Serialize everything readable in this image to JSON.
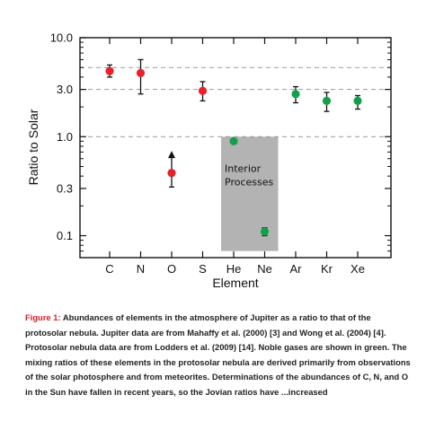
{
  "chart_data": {
    "type": "scatter",
    "title": "",
    "xlabel": "Element",
    "ylabel": "Ratio to Solar",
    "yscale": "log",
    "ylim": [
      0.06,
      10.0
    ],
    "categories": [
      "C",
      "N",
      "O",
      "S",
      "He",
      "Ne",
      "Ar",
      "Kr",
      "Xe"
    ],
    "y_ticks": [
      {
        "value": 10.0,
        "label": "10.0"
      },
      {
        "value": 3.0,
        "label": "3.0"
      },
      {
        "value": 1.0,
        "label": "1.0"
      },
      {
        "value": 0.3,
        "label": "0.3"
      },
      {
        "value": 0.1,
        "label": "0.1"
      }
    ],
    "reference_lines": [
      5.0,
      3.0,
      1.0
    ],
    "shaded_region": {
      "from": "He",
      "to": "Ne",
      "y_from": 0.07,
      "y_to": 1.0,
      "label_lines": [
        "Interior",
        "Processes"
      ]
    },
    "points": [
      {
        "x": "C",
        "y": 4.6,
        "err_low": 4.0,
        "err_high": 5.3,
        "color": "#e8202a"
      },
      {
        "x": "N",
        "y": 4.4,
        "err_low": 2.7,
        "err_high": 6.0,
        "color": "#e8202a"
      },
      {
        "x": "O",
        "y": 0.43,
        "err_low": 0.31,
        "err_high": 0.62,
        "color": "#e8202a",
        "lower_limit_arrow": true
      },
      {
        "x": "S",
        "y": 2.9,
        "err_low": 2.3,
        "err_high": 3.6,
        "color": "#e8202a"
      },
      {
        "x": "He",
        "y": 0.9,
        "err_low": 0.88,
        "err_high": 0.92,
        "color": "#14a04a"
      },
      {
        "x": "Ne",
        "y": 0.11,
        "err_low": 0.1,
        "err_high": 0.12,
        "color": "#14a04a"
      },
      {
        "x": "Ar",
        "y": 2.7,
        "err_low": 2.2,
        "err_high": 3.2,
        "color": "#14a04a"
      },
      {
        "x": "Kr",
        "y": 2.3,
        "err_low": 1.8,
        "err_high": 2.8,
        "color": "#14a04a"
      },
      {
        "x": "Xe",
        "y": 2.3,
        "err_low": 1.9,
        "err_high": 2.6,
        "color": "#14a04a"
      }
    ],
    "colors": {
      "red": "#e8202a",
      "green": "#14a04a",
      "shade": "#b3b3b3",
      "dash": "#999999"
    }
  },
  "caption": {
    "label": "Figure 1:",
    "text": "Abundances of elements in the atmosphere of Jupiter as a ratio to that of the protosolar nebula. Jupiter data are from Mahaffy et al. (2000) [3] and Wong et al. (2004) [4]. Protosolar nebula data are from Lodders et al. (2009) [14]. Noble gases are shown in green. The mixing ratios of these elements in the protosolar nebula are derived primarily from observations of the solar photosphere and from meteorites. Determinations of the abundances of C, N, and O in the Sun have fallen in recent years, so the Jovian ratios have ...increased"
  }
}
